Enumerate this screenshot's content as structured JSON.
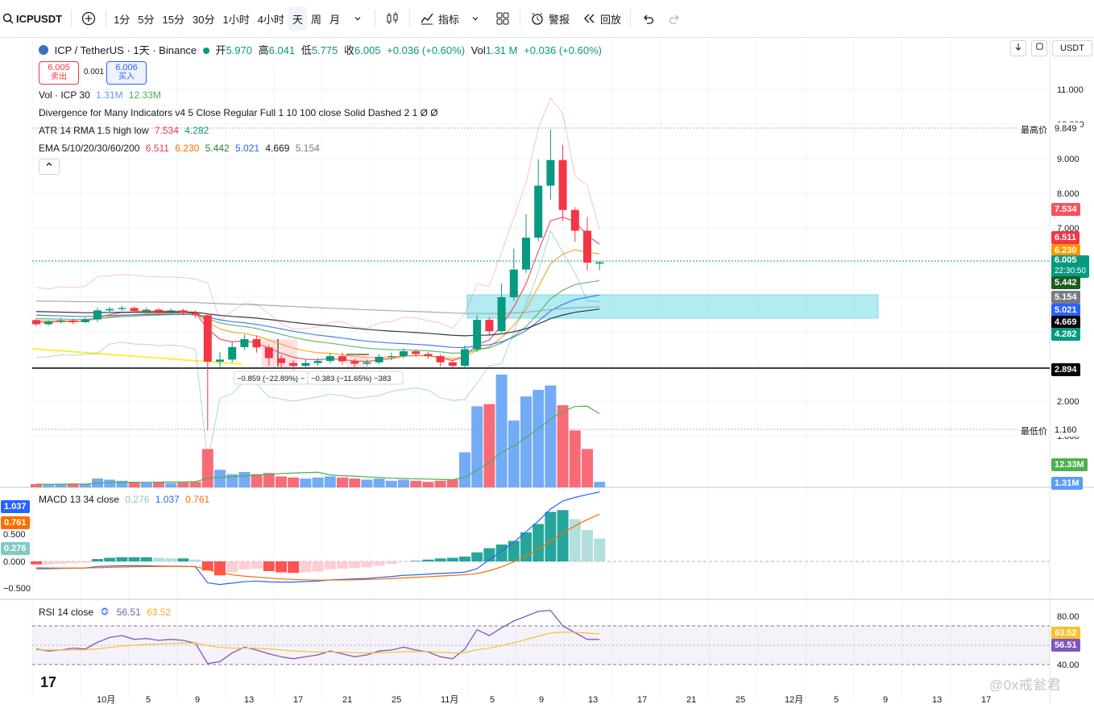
{
  "toolbar": {
    "symbol": "ICPUSDT",
    "intervals": [
      "1分",
      "5分",
      "15分",
      "30分",
      "1小时",
      "4小时",
      "天",
      "周",
      "月"
    ],
    "active_interval": "天",
    "indicators_label": "指标",
    "alert_label": "警报",
    "replay_label": "回放"
  },
  "header": {
    "title": "ICP / TetherUS · 1天 · Binance",
    "open_label": "开",
    "open": "5.970",
    "high_label": "高",
    "high": "6.041",
    "low_label": "低",
    "low": "5.775",
    "close_label": "收",
    "close": "6.005",
    "change": "+0.036 (+0.60%)",
    "vol_label": "Vol",
    "vol": "1.31 M",
    "vol_change": "+0.036 (+0.60%)"
  },
  "trade": {
    "sell_price": "6.005",
    "sell_label": "卖出",
    "spread": "0.001",
    "buy_price": "6.006",
    "buy_label": "买入"
  },
  "legends": {
    "vol": {
      "name": "Vol · ICP 30",
      "v1": "1.31M",
      "v2": "12.33M"
    },
    "divergence": "Divergence for Many Indicators v4 5 Close Regular Full 1 10 100 close Solid Dashed 2 1  Ø  Ø",
    "atr": {
      "name": "ATR 14 RMA 1.5 high low",
      "v1": "7.534",
      "v2": "4.282"
    },
    "ema": {
      "name": "EMA 5/10/20/30/60/200",
      "values": [
        "6.511",
        "6.230",
        "5.442",
        "5.021",
        "4.669",
        "5.154"
      ]
    },
    "macd": {
      "name": "MACD 13 34 close",
      "values": [
        "0.276",
        "1.037",
        "0.761"
      ]
    },
    "rsi": {
      "name": "RSI 14 close",
      "values": [
        "56.51",
        "63.52"
      ]
    }
  },
  "currency": "USDT",
  "price_axis": [
    "11.000",
    "10.000",
    "9.000",
    "8.000",
    "7.000",
    "6.000",
    "3.000",
    "2.000",
    "1.000"
  ],
  "price_tags": [
    {
      "label": "最高价",
      "value": "9.849"
    },
    {
      "value": "7.534",
      "color": "#f7525f"
    },
    {
      "value": "6.511",
      "color": "#f23645"
    },
    {
      "value": "6.230",
      "color": "#ff9800"
    },
    {
      "value": "6.005",
      "color": "#089981",
      "sub": "22:30:50"
    },
    {
      "value": "5.442",
      "color": "#1b5e20"
    },
    {
      "value": "5.154",
      "color": "#787b86"
    },
    {
      "value": "5.021",
      "color": "#2962ff"
    },
    {
      "value": "4.669",
      "color": "#000000"
    },
    {
      "value": "4.282",
      "color": "#089981"
    },
    {
      "value": "2.894",
      "color": "#000000"
    },
    {
      "label": "最低价",
      "value": "1.160"
    },
    {
      "value": "12.33M",
      "color": "#4caf50"
    },
    {
      "value": "1.31M",
      "color": "#5b9cf6"
    }
  ],
  "measure": {
    "m1": "−0.859 (−22.89%) −",
    "m2": "−0.383 (−11.65%) −383"
  },
  "macd_axis": [
    "1.037",
    "0.761",
    "0.500",
    "0.276",
    "0.000",
    "−0.500"
  ],
  "rsi_axis": [
    "80.00",
    "63.52",
    "56.51",
    "40.00"
  ],
  "time_axis": [
    "10月",
    "5",
    "9",
    "13",
    "17",
    "21",
    "25",
    "11月",
    "5",
    "9",
    "13",
    "17",
    "21",
    "25",
    "12月",
    "5",
    "9",
    "13",
    "17"
  ],
  "watermark": "@0x戒瓮君",
  "tv_logo": "17",
  "colors": {
    "up": "#089981",
    "down": "#f23645",
    "accent": "#2962ff"
  },
  "candles": [
    [
      4.34,
      4.22,
      4.38,
      4.16
    ],
    [
      4.22,
      4.3,
      4.34,
      4.18
    ],
    [
      4.3,
      4.33,
      4.4,
      4.24
    ],
    [
      4.33,
      4.28,
      4.38,
      4.22
    ],
    [
      4.28,
      4.36,
      4.41,
      4.25
    ],
    [
      4.36,
      4.62,
      4.7,
      4.28
    ],
    [
      4.62,
      4.66,
      4.72,
      4.55
    ],
    [
      4.66,
      4.69,
      4.75,
      4.6
    ],
    [
      4.69,
      4.6,
      4.74,
      4.55
    ],
    [
      4.6,
      4.64,
      4.7,
      4.54
    ],
    [
      4.64,
      4.58,
      4.69,
      4.5
    ],
    [
      4.58,
      4.62,
      4.68,
      4.52
    ],
    [
      4.62,
      4.56,
      4.67,
      4.48
    ],
    [
      4.56,
      4.48,
      4.62,
      4.4
    ],
    [
      4.48,
      3.14,
      4.52,
      1.16
    ],
    [
      3.14,
      3.2,
      3.42,
      2.98
    ],
    [
      3.2,
      3.56,
      3.7,
      3.12
    ],
    [
      3.56,
      3.79,
      3.92,
      3.48
    ],
    [
      3.79,
      3.55,
      3.9,
      3.4
    ],
    [
      3.55,
      3.24,
      3.62,
      3.02
    ],
    [
      3.24,
      3.1,
      3.34,
      2.96
    ],
    [
      3.1,
      3.02,
      3.18,
      2.9
    ],
    [
      3.02,
      3.1,
      3.2,
      2.96
    ],
    [
      3.1,
      3.16,
      3.24,
      3.02
    ],
    [
      3.16,
      3.3,
      3.38,
      3.1
    ],
    [
      3.3,
      3.15,
      3.4,
      3.06
    ],
    [
      3.15,
      3.08,
      3.24,
      2.98
    ],
    [
      3.08,
      3.12,
      3.2,
      3.02
    ],
    [
      3.12,
      3.28,
      3.36,
      3.06
    ],
    [
      3.28,
      3.3,
      3.4,
      3.18
    ],
    [
      3.3,
      3.44,
      3.52,
      3.24
    ],
    [
      3.44,
      3.36,
      3.5,
      3.28
    ],
    [
      3.36,
      3.3,
      3.42,
      3.22
    ],
    [
      3.3,
      3.12,
      3.36,
      3.0
    ],
    [
      3.12,
      3.02,
      3.2,
      2.92
    ],
    [
      3.02,
      3.5,
      3.62,
      2.95
    ],
    [
      3.5,
      4.35,
      4.48,
      3.42
    ],
    [
      4.35,
      4.02,
      4.42,
      3.92
    ],
    [
      4.02,
      5.0,
      5.4,
      3.98
    ],
    [
      5.0,
      5.8,
      6.4,
      4.9
    ],
    [
      5.8,
      6.72,
      7.4,
      5.7
    ],
    [
      6.72,
      8.22,
      8.98,
      6.62
    ],
    [
      8.22,
      8.96,
      9.85,
      7.82
    ],
    [
      8.96,
      7.52,
      9.4,
      7.2
    ],
    [
      7.52,
      6.92,
      7.6,
      6.6
    ],
    [
      6.92,
      6.0,
      7.32,
      5.78
    ],
    [
      5.97,
      6.01,
      6.04,
      5.78
    ]
  ],
  "volumes": [
    0.3,
    0.25,
    0.3,
    0.35,
    0.3,
    0.8,
    0.7,
    0.6,
    0.5,
    0.45,
    0.45,
    0.4,
    0.45,
    0.5,
    3.5,
    1.6,
    1.2,
    1.4,
    1.2,
    1.3,
    1.0,
    0.9,
    0.8,
    0.9,
    1.0,
    0.9,
    0.8,
    0.7,
    0.8,
    0.6,
    0.7,
    0.6,
    0.5,
    0.6,
    0.7,
    3.2,
    7.4,
    7.6,
    10.3,
    6.1,
    8.3,
    8.9,
    9.3,
    7.5,
    5.2,
    3.5,
    0.5
  ],
  "macd_hist": [
    -0.05,
    -0.05,
    -0.04,
    -0.03,
    -0.02,
    0.04,
    0.06,
    0.07,
    0.07,
    0.07,
    0.06,
    0.05,
    0.05,
    0.03,
    -0.15,
    -0.23,
    -0.18,
    -0.13,
    -0.12,
    -0.16,
    -0.18,
    -0.19,
    -0.18,
    -0.17,
    -0.13,
    -0.12,
    -0.11,
    -0.1,
    -0.07,
    -0.04,
    0.0,
    0.01,
    0.03,
    0.05,
    0.06,
    0.08,
    0.15,
    0.22,
    0.28,
    0.34,
    0.48,
    0.62,
    0.82,
    0.85,
    0.7,
    0.52,
    0.38
  ],
  "rsi": [
    46,
    44,
    45,
    47,
    46,
    53,
    58,
    60,
    56,
    57,
    55,
    56,
    55,
    52,
    31,
    33,
    42,
    48,
    45,
    41,
    38,
    36,
    38,
    40,
    44,
    41,
    38,
    40,
    44,
    45,
    48,
    45,
    43,
    38,
    36,
    46,
    66,
    60,
    68,
    75,
    80,
    85,
    86,
    70,
    63,
    56,
    56
  ]
}
